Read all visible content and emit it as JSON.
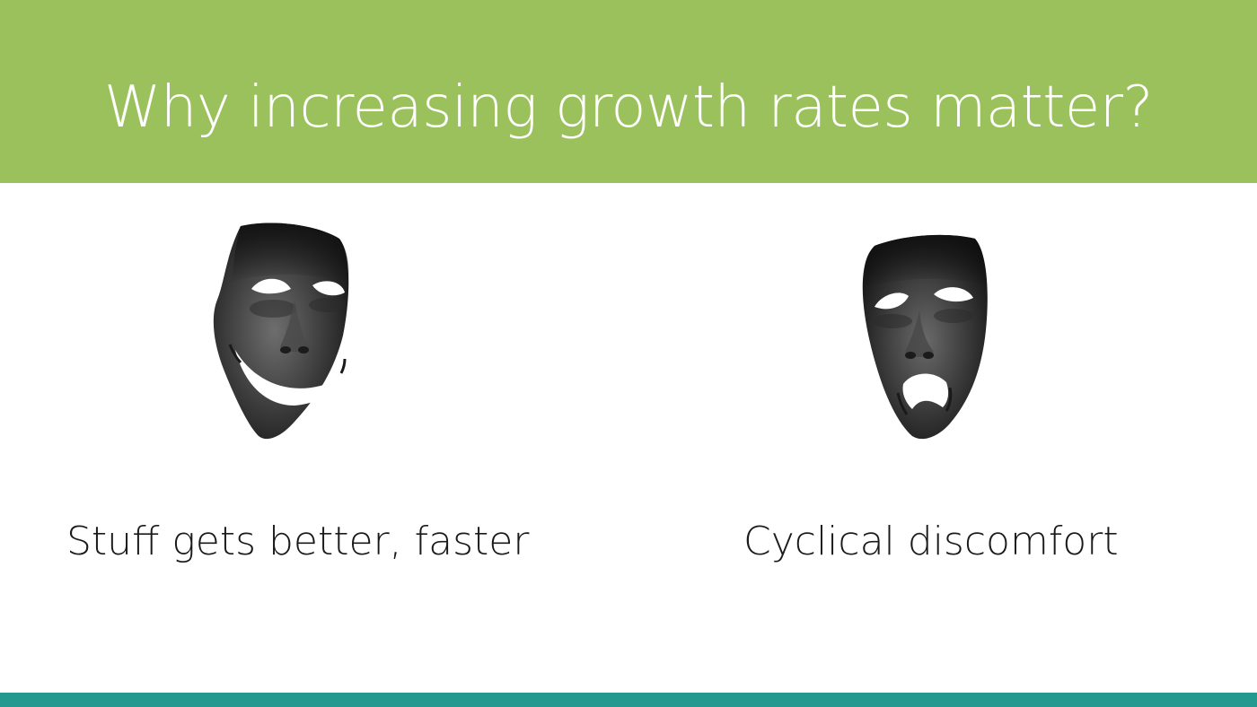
{
  "slide": {
    "title": "Why increasing growth rates matter?",
    "header_color": "#9bc15c",
    "footer_color": "#23998f",
    "left": {
      "icon": "comedy-mask-icon",
      "caption": "Stuff gets better, faster"
    },
    "right": {
      "icon": "tragedy-mask-icon",
      "caption": "Cyclical discomfort"
    }
  }
}
